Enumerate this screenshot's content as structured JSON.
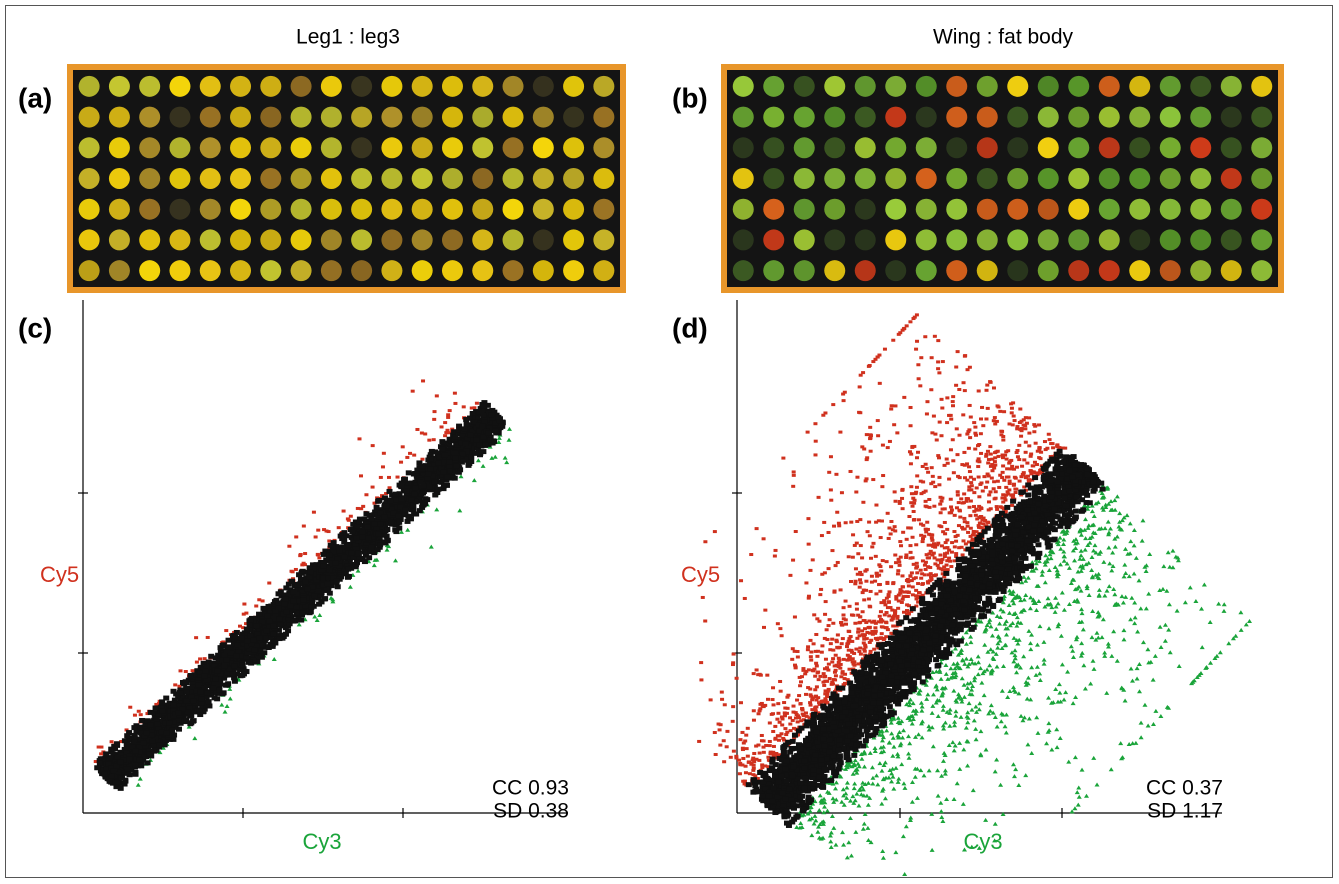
{
  "arrays": [
    {
      "label": "(a)",
      "title": "Leg1 : leg3"
    },
    {
      "label": "(b)",
      "title": "Wing : fat body"
    }
  ],
  "plots": [
    {
      "label": "(c)",
      "y_label": "Cy5",
      "x_label": "Cy3",
      "stats": [
        "CC 0.93",
        "SD 0.38"
      ]
    },
    {
      "label": "(d)",
      "y_label": "Cy5",
      "x_label": "Cy3",
      "stats": [
        "CC 0.37",
        "SD 1.17"
      ]
    }
  ]
}
